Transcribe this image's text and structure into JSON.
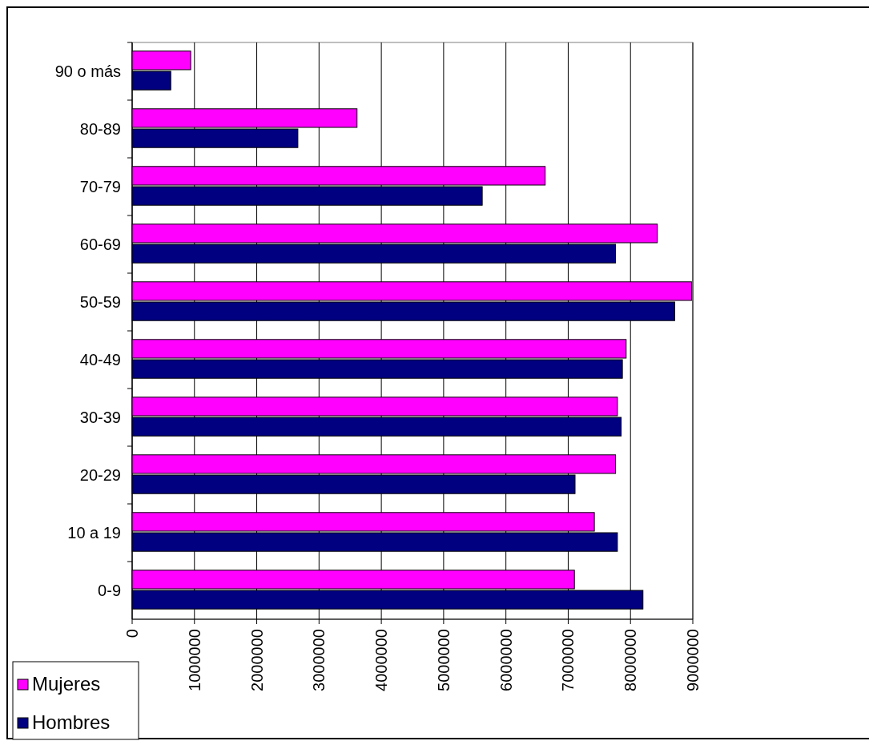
{
  "chart_data": {
    "type": "bar",
    "orientation": "horizontal",
    "categories": [
      "90 o más",
      "80-89",
      "70-79",
      "60-69",
      "50-59",
      "40-49",
      "30-39",
      "20-29",
      "10 a 19",
      "0-9"
    ],
    "series": [
      {
        "name": "Mujeres",
        "color": "#ff00ff",
        "values": [
          940000,
          3610000,
          6630000,
          8430000,
          8980000,
          7930000,
          7790000,
          7760000,
          7420000,
          7100000
        ]
      },
      {
        "name": "Hombres",
        "color": "#000080",
        "values": [
          620000,
          2660000,
          5620000,
          7760000,
          8710000,
          7870000,
          7850000,
          7110000,
          7790000,
          8200000
        ]
      }
    ],
    "xlim": [
      0,
      9000000
    ],
    "xticks": [
      0,
      1000000,
      2000000,
      3000000,
      4000000,
      5000000,
      6000000,
      7000000,
      8000000,
      9000000
    ],
    "grid": "x",
    "legend": "bottom left"
  }
}
